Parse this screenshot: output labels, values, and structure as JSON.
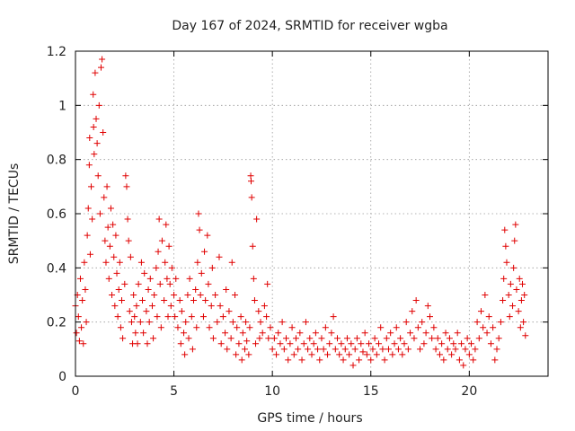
{
  "chart_data": {
    "type": "scatter",
    "title": "Day 167 of 2024, SRMTID for receiver wgba",
    "xlabel": "GPS time / hours",
    "ylabel": "SRMTID / TECUs",
    "xlim": [
      0,
      24
    ],
    "ylim": [
      0,
      1.2
    ],
    "xticks": [
      0,
      5,
      10,
      15,
      20
    ],
    "xtick_labels": [
      "0",
      "5",
      "10",
      "15",
      "20"
    ],
    "yticks": [
      0,
      0.2,
      0.4,
      0.6,
      0.8,
      1.0,
      1.2
    ],
    "ytick_labels": [
      "0",
      "0.2",
      "0.4",
      "0.6",
      "0.8",
      "1",
      "1.2"
    ],
    "grid": true,
    "marker": "+",
    "color": "#e00000",
    "series": [
      {
        "name": "SRMTID",
        "points": [
          [
            0.0,
            0.26
          ],
          [
            0.05,
            0.16
          ],
          [
            0.1,
            0.3
          ],
          [
            0.15,
            0.22
          ],
          [
            0.2,
            0.13
          ],
          [
            0.25,
            0.36
          ],
          [
            0.3,
            0.18
          ],
          [
            0.35,
            0.28
          ],
          [
            0.4,
            0.12
          ],
          [
            0.45,
            0.42
          ],
          [
            0.5,
            0.32
          ],
          [
            0.55,
            0.2
          ],
          [
            0.6,
            0.52
          ],
          [
            0.65,
            0.62
          ],
          [
            0.7,
            0.78
          ],
          [
            0.72,
            0.88
          ],
          [
            0.75,
            0.45
          ],
          [
            0.8,
            0.7
          ],
          [
            0.85,
            0.58
          ],
          [
            0.9,
            1.04
          ],
          [
            0.92,
            0.92
          ],
          [
            0.95,
            0.82
          ],
          [
            1.0,
            1.12
          ],
          [
            1.05,
            0.95
          ],
          [
            1.1,
            0.86
          ],
          [
            1.15,
            0.74
          ],
          [
            1.2,
            1.0
          ],
          [
            1.25,
            0.6
          ],
          [
            1.3,
            1.14
          ],
          [
            1.35,
            1.17
          ],
          [
            1.4,
            0.9
          ],
          [
            1.45,
            0.66
          ],
          [
            1.5,
            0.5
          ],
          [
            1.55,
            0.42
          ],
          [
            1.6,
            0.7
          ],
          [
            1.65,
            0.55
          ],
          [
            1.7,
            0.36
          ],
          [
            1.75,
            0.48
          ],
          [
            1.8,
            0.62
          ],
          [
            1.85,
            0.3
          ],
          [
            1.9,
            0.56
          ],
          [
            1.95,
            0.44
          ],
          [
            2.0,
            0.26
          ],
          [
            2.05,
            0.52
          ],
          [
            2.1,
            0.38
          ],
          [
            2.15,
            0.22
          ],
          [
            2.2,
            0.32
          ],
          [
            2.25,
            0.42
          ],
          [
            2.3,
            0.18
          ],
          [
            2.35,
            0.28
          ],
          [
            2.4,
            0.14
          ],
          [
            2.5,
            0.34
          ],
          [
            2.55,
            0.74
          ],
          [
            2.6,
            0.7
          ],
          [
            2.65,
            0.58
          ],
          [
            2.7,
            0.5
          ],
          [
            2.75,
            0.24
          ],
          [
            2.8,
            0.44
          ],
          [
            2.85,
            0.2
          ],
          [
            2.9,
            0.12
          ],
          [
            2.95,
            0.3
          ],
          [
            3.0,
            0.22
          ],
          [
            3.05,
            0.16
          ],
          [
            3.1,
            0.26
          ],
          [
            3.15,
            0.12
          ],
          [
            3.2,
            0.34
          ],
          [
            3.3,
            0.2
          ],
          [
            3.35,
            0.42
          ],
          [
            3.4,
            0.28
          ],
          [
            3.45,
            0.16
          ],
          [
            3.5,
            0.38
          ],
          [
            3.6,
            0.24
          ],
          [
            3.65,
            0.12
          ],
          [
            3.7,
            0.32
          ],
          [
            3.75,
            0.2
          ],
          [
            3.8,
            0.36
          ],
          [
            3.9,
            0.26
          ],
          [
            3.95,
            0.14
          ],
          [
            4.0,
            0.3
          ],
          [
            4.1,
            0.4
          ],
          [
            4.15,
            0.22
          ],
          [
            4.2,
            0.46
          ],
          [
            4.25,
            0.58
          ],
          [
            4.3,
            0.34
          ],
          [
            4.35,
            0.18
          ],
          [
            4.4,
            0.5
          ],
          [
            4.5,
            0.28
          ],
          [
            4.55,
            0.42
          ],
          [
            4.6,
            0.56
          ],
          [
            4.65,
            0.36
          ],
          [
            4.7,
            0.22
          ],
          [
            4.75,
            0.48
          ],
          [
            4.8,
            0.34
          ],
          [
            4.85,
            0.26
          ],
          [
            4.9,
            0.4
          ],
          [
            5.0,
            0.3
          ],
          [
            5.05,
            0.22
          ],
          [
            5.1,
            0.36
          ],
          [
            5.2,
            0.18
          ],
          [
            5.3,
            0.28
          ],
          [
            5.35,
            0.12
          ],
          [
            5.4,
            0.24
          ],
          [
            5.5,
            0.16
          ],
          [
            5.55,
            0.08
          ],
          [
            5.6,
            0.2
          ],
          [
            5.7,
            0.3
          ],
          [
            5.75,
            0.14
          ],
          [
            5.8,
            0.36
          ],
          [
            5.9,
            0.22
          ],
          [
            5.95,
            0.1
          ],
          [
            6.0,
            0.28
          ],
          [
            6.1,
            0.32
          ],
          [
            6.15,
            0.18
          ],
          [
            6.2,
            0.42
          ],
          [
            6.25,
            0.6
          ],
          [
            6.3,
            0.54
          ],
          [
            6.35,
            0.3
          ],
          [
            6.4,
            0.38
          ],
          [
            6.5,
            0.22
          ],
          [
            6.55,
            0.46
          ],
          [
            6.6,
            0.28
          ],
          [
            6.7,
            0.52
          ],
          [
            6.75,
            0.34
          ],
          [
            6.8,
            0.18
          ],
          [
            6.9,
            0.26
          ],
          [
            6.95,
            0.4
          ],
          [
            7.0,
            0.14
          ],
          [
            7.1,
            0.3
          ],
          [
            7.2,
            0.2
          ],
          [
            7.3,
            0.44
          ],
          [
            7.35,
            0.26
          ],
          [
            7.4,
            0.12
          ],
          [
            7.5,
            0.22
          ],
          [
            7.6,
            0.16
          ],
          [
            7.65,
            0.32
          ],
          [
            7.7,
            0.1
          ],
          [
            7.8,
            0.24
          ],
          [
            7.9,
            0.14
          ],
          [
            7.95,
            0.42
          ],
          [
            8.0,
            0.2
          ],
          [
            8.1,
            0.3
          ],
          [
            8.15,
            0.08
          ],
          [
            8.2,
            0.18
          ],
          [
            8.3,
            0.12
          ],
          [
            8.4,
            0.22
          ],
          [
            8.45,
            0.06
          ],
          [
            8.5,
            0.16
          ],
          [
            8.6,
            0.1
          ],
          [
            8.65,
            0.2
          ],
          [
            8.7,
            0.13
          ],
          [
            8.8,
            0.08
          ],
          [
            8.85,
            0.18
          ],
          [
            8.9,
            0.74
          ],
          [
            8.92,
            0.72
          ],
          [
            8.95,
            0.66
          ],
          [
            9.0,
            0.48
          ],
          [
            9.05,
            0.36
          ],
          [
            9.1,
            0.28
          ],
          [
            9.15,
            0.12
          ],
          [
            9.2,
            0.58
          ],
          [
            9.3,
            0.24
          ],
          [
            9.35,
            0.14
          ],
          [
            9.4,
            0.2
          ],
          [
            9.5,
            0.16
          ],
          [
            9.6,
            0.26
          ],
          [
            9.7,
            0.22
          ],
          [
            9.75,
            0.34
          ],
          [
            9.8,
            0.14
          ],
          [
            9.9,
            0.18
          ],
          [
            10.0,
            0.1
          ],
          [
            10.1,
            0.14
          ],
          [
            10.2,
            0.08
          ],
          [
            10.3,
            0.16
          ],
          [
            10.4,
            0.12
          ],
          [
            10.5,
            0.2
          ],
          [
            10.6,
            0.1
          ],
          [
            10.7,
            0.14
          ],
          [
            10.8,
            0.06
          ],
          [
            10.9,
            0.12
          ],
          [
            11.0,
            0.18
          ],
          [
            11.1,
            0.08
          ],
          [
            11.2,
            0.14
          ],
          [
            11.3,
            0.1
          ],
          [
            11.4,
            0.16
          ],
          [
            11.5,
            0.06
          ],
          [
            11.6,
            0.12
          ],
          [
            11.7,
            0.2
          ],
          [
            11.8,
            0.1
          ],
          [
            11.9,
            0.14
          ],
          [
            12.0,
            0.08
          ],
          [
            12.1,
            0.12
          ],
          [
            12.2,
            0.16
          ],
          [
            12.3,
            0.1
          ],
          [
            12.4,
            0.06
          ],
          [
            12.5,
            0.14
          ],
          [
            12.6,
            0.1
          ],
          [
            12.7,
            0.18
          ],
          [
            12.8,
            0.08
          ],
          [
            12.9,
            0.12
          ],
          [
            13.0,
            0.16
          ],
          [
            13.1,
            0.22
          ],
          [
            13.2,
            0.1
          ],
          [
            13.3,
            0.14
          ],
          [
            13.4,
            0.08
          ],
          [
            13.5,
            0.12
          ],
          [
            13.6,
            0.06
          ],
          [
            13.7,
            0.1
          ],
          [
            13.8,
            0.14
          ],
          [
            13.9,
            0.08
          ],
          [
            14.0,
            0.12
          ],
          [
            14.1,
            0.04
          ],
          [
            14.2,
            0.1
          ],
          [
            14.3,
            0.14
          ],
          [
            14.4,
            0.06
          ],
          [
            14.5,
            0.12
          ],
          [
            14.6,
            0.09
          ],
          [
            14.7,
            0.16
          ],
          [
            14.8,
            0.08
          ],
          [
            14.9,
            0.12
          ],
          [
            15.0,
            0.06
          ],
          [
            15.1,
            0.1
          ],
          [
            15.2,
            0.14
          ],
          [
            15.3,
            0.08
          ],
          [
            15.4,
            0.12
          ],
          [
            15.5,
            0.18
          ],
          [
            15.6,
            0.1
          ],
          [
            15.7,
            0.06
          ],
          [
            15.8,
            0.14
          ],
          [
            15.9,
            0.1
          ],
          [
            16.0,
            0.16
          ],
          [
            16.1,
            0.08
          ],
          [
            16.2,
            0.12
          ],
          [
            16.3,
            0.18
          ],
          [
            16.4,
            0.1
          ],
          [
            16.5,
            0.14
          ],
          [
            16.6,
            0.08
          ],
          [
            16.7,
            0.12
          ],
          [
            16.8,
            0.2
          ],
          [
            16.9,
            0.1
          ],
          [
            17.0,
            0.16
          ],
          [
            17.1,
            0.24
          ],
          [
            17.2,
            0.14
          ],
          [
            17.3,
            0.28
          ],
          [
            17.4,
            0.18
          ],
          [
            17.5,
            0.1
          ],
          [
            17.6,
            0.2
          ],
          [
            17.7,
            0.12
          ],
          [
            17.8,
            0.16
          ],
          [
            17.9,
            0.26
          ],
          [
            18.0,
            0.22
          ],
          [
            18.1,
            0.14
          ],
          [
            18.2,
            0.18
          ],
          [
            18.3,
            0.1
          ],
          [
            18.4,
            0.14
          ],
          [
            18.5,
            0.08
          ],
          [
            18.6,
            0.12
          ],
          [
            18.7,
            0.06
          ],
          [
            18.8,
            0.16
          ],
          [
            18.9,
            0.1
          ],
          [
            19.0,
            0.14
          ],
          [
            19.1,
            0.08
          ],
          [
            19.2,
            0.12
          ],
          [
            19.3,
            0.1
          ],
          [
            19.4,
            0.16
          ],
          [
            19.5,
            0.06
          ],
          [
            19.6,
            0.12
          ],
          [
            19.7,
            0.04
          ],
          [
            19.8,
            0.1
          ],
          [
            19.9,
            0.14
          ],
          [
            20.0,
            0.08
          ],
          [
            20.1,
            0.12
          ],
          [
            20.2,
            0.06
          ],
          [
            20.3,
            0.1
          ],
          [
            20.4,
            0.2
          ],
          [
            20.5,
            0.14
          ],
          [
            20.6,
            0.24
          ],
          [
            20.7,
            0.18
          ],
          [
            20.8,
            0.3
          ],
          [
            20.9,
            0.16
          ],
          [
            21.0,
            0.22
          ],
          [
            21.1,
            0.12
          ],
          [
            21.2,
            0.18
          ],
          [
            21.3,
            0.06
          ],
          [
            21.4,
            0.1
          ],
          [
            21.5,
            0.14
          ],
          [
            21.6,
            0.2
          ],
          [
            21.7,
            0.28
          ],
          [
            21.75,
            0.36
          ],
          [
            21.8,
            0.54
          ],
          [
            21.85,
            0.48
          ],
          [
            21.9,
            0.42
          ],
          [
            22.0,
            0.3
          ],
          [
            22.05,
            0.22
          ],
          [
            22.1,
            0.34
          ],
          [
            22.2,
            0.26
          ],
          [
            22.25,
            0.4
          ],
          [
            22.3,
            0.5
          ],
          [
            22.35,
            0.56
          ],
          [
            22.4,
            0.32
          ],
          [
            22.5,
            0.24
          ],
          [
            22.55,
            0.36
          ],
          [
            22.6,
            0.18
          ],
          [
            22.65,
            0.28
          ],
          [
            22.7,
            0.34
          ],
          [
            22.75,
            0.2
          ],
          [
            22.8,
            0.3
          ],
          [
            22.85,
            0.15
          ]
        ]
      }
    ]
  }
}
